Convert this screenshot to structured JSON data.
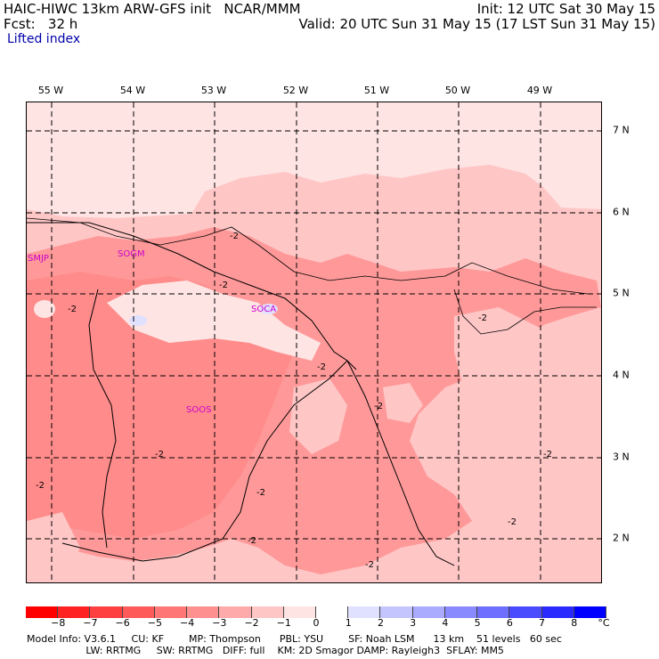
{
  "header": {
    "title_left": "HAIC-HIWC 13km ARW-GFS init   NCAR/MMM",
    "fcst": "Fcst:   32 h",
    "init": "Init: 12 UTC Sat 30 May 15",
    "valid": "Valid: 20 UTC Sun 31 May 15 (17 LST Sun 31 May 15)",
    "field": "Lifted index"
  },
  "axes": {
    "lon_labels": [
      "55 W",
      "54 W",
      "53 W",
      "52 W",
      "51 W",
      "50 W",
      "49 W"
    ],
    "lat_labels": [
      "7 N",
      "6 N",
      "5 N",
      "4 N",
      "3 N",
      "2 N"
    ]
  },
  "stations": [
    "SMJP",
    "SOGM",
    "SOCA",
    "SOOS"
  ],
  "contour_label": "-2",
  "colorbar": {
    "labels": [
      "−8",
      "−7",
      "−6",
      "−5",
      "−4",
      "−3",
      "−2",
      "−1",
      "0",
      "1",
      "2",
      "3",
      "4",
      "5",
      "6",
      "7",
      "8"
    ],
    "unit": "°C",
    "colors": [
      "#ff0000",
      "#ff2222",
      "#ff4040",
      "#ff5a5a",
      "#ff7676",
      "#ff9090",
      "#ffaaaa",
      "#ffc6c6",
      "#ffe4e4",
      "#ffffff",
      "#e0e0ff",
      "#c4c4ff",
      "#aaaaff",
      "#8a8aff",
      "#6e6eff",
      "#4a4aff",
      "#2a2aff",
      "#0000ff"
    ]
  },
  "footer": {
    "line1": "Model Info: V3.6.1     CU: KF        MP: Thompson      PBL: YSU        SF: Noah LSM      13 km    51 levels   60 sec",
    "line2": "                   LW: RRTMG     SW: RRTMG   DIFF: full    KM: 2D Smagor DAMP: Rayleigh3  SFLAY: MM5"
  }
}
